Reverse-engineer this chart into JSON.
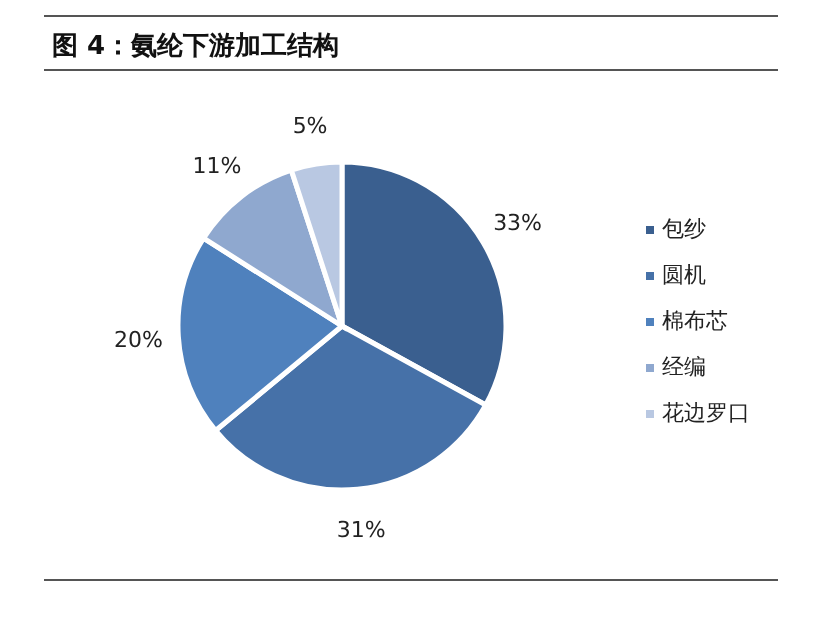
{
  "chart_data": {
    "type": "pie",
    "title": "图 4：氨纶下游加工结构",
    "categories": [
      "包纱",
      "圆机",
      "棉布芯",
      "经编",
      "花边罗口"
    ],
    "values": [
      33,
      31,
      20,
      11,
      5
    ],
    "colors": [
      "#3a5f8f",
      "#4671a8",
      "#4f81bd",
      "#8fa8cf",
      "#b9c8e2"
    ],
    "value_labels": [
      "33%",
      "31%",
      "20%",
      "11%",
      "5%"
    ],
    "legend": "right"
  }
}
